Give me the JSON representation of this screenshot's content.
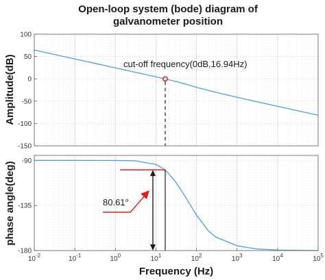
{
  "chart_data": [
    {
      "type": "line",
      "title_lines": [
        "Open-loop system (bode) diagram of",
        "galvanometer position"
      ],
      "xlabel": "",
      "ylabel": "Amplitude(dB)",
      "xscale": "log",
      "xlim": [
        0.01,
        100000
      ],
      "ylim": [
        -150,
        100
      ],
      "yticks": [
        100,
        50,
        0,
        -50,
        -100,
        -150
      ],
      "xticks": [
        0.01,
        0.1,
        1,
        10,
        100,
        1000,
        10000,
        100000
      ],
      "grid": true,
      "line_color": "#4a9fd4",
      "series": [
        {
          "name": "",
          "x": [
            0.01,
            0.03,
            0.1,
            0.3,
            1,
            3,
            10,
            16.94,
            30,
            50,
            100,
            200,
            300,
            1000,
            3000,
            10000,
            30000,
            100000
          ],
          "y": [
            64.6,
            55.1,
            44.6,
            35.1,
            24.6,
            15.0,
            4.5,
            -0.05,
            -5.5,
            -10.9,
            -19.0,
            -26.1,
            -30.1,
            -41.3,
            -51.1,
            -61.5,
            -71.0,
            -81.5
          ]
        }
      ],
      "annotation": {
        "text": "cut-off frequency(0dB,16.94Hz)",
        "x": 16.94,
        "y": 0,
        "marker_color": "#e02020"
      }
    },
    {
      "type": "line",
      "xlabel": "Frequency (Hz)",
      "ylabel": "phase angle(deg)",
      "xscale": "log",
      "xlim": [
        0.01,
        100000
      ],
      "ylim": [
        -180,
        -85
      ],
      "yticks": [
        -90,
        -135,
        -180
      ],
      "xticks": [
        0.01,
        0.1,
        1,
        10,
        100,
        1000,
        10000,
        100000
      ],
      "xtick_labels": [
        "10-2",
        "10-1",
        "100",
        "101",
        "102",
        "103",
        "104",
        "105"
      ],
      "grid": true,
      "line_color": "#4a9fd4",
      "series": [
        {
          "name": "",
          "x": [
            0.01,
            0.1,
            1,
            3,
            10,
            16.94,
            30,
            50,
            100,
            200,
            300,
            1000,
            3000,
            10000,
            100000
          ],
          "y": [
            -90.0,
            -90.0,
            -90.1,
            -90.4,
            -94.0,
            -99.4,
            -111.0,
            -124.5,
            -144.6,
            -160.6,
            -166.5,
            -175.2,
            -178.4,
            -179.5,
            -180.0
          ]
        }
      ],
      "annotation": {
        "text": "80.61°",
        "x": 16.94,
        "y_top": -99.4,
        "y_bottom": -180,
        "arrow_color": "#e02020"
      }
    }
  ]
}
